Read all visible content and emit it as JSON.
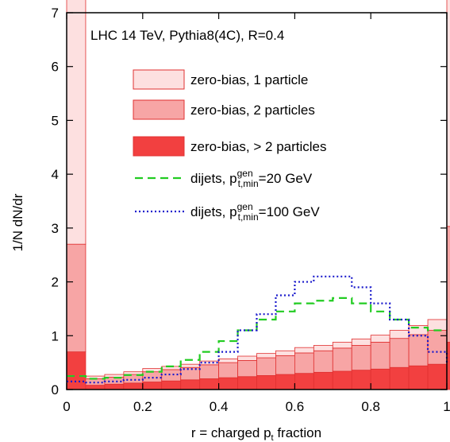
{
  "chart_data": {
    "type": "bar",
    "annotation": "LHC 14 TeV, Pythia8(4C), R=0.4",
    "xlabel_main": "r = charged p",
    "xlabel_sub": "t",
    "xlabel_tail": " fraction",
    "ylabel": "1/N dN/dr",
    "xlim": [
      0,
      1
    ],
    "ylim": [
      0,
      7
    ],
    "xticks": [
      "0",
      "0.2",
      "0.4",
      "0.6",
      "0.8",
      "1"
    ],
    "xtick_values": [
      0,
      0.2,
      0.4,
      0.6,
      0.8,
      1.0
    ],
    "yticks": [
      "0",
      "1",
      "2",
      "3",
      "4",
      "5",
      "6",
      "7"
    ],
    "ytick_values": [
      0,
      1,
      2,
      3,
      4,
      5,
      6,
      7
    ],
    "bin_edges": [
      0,
      0.05,
      0.1,
      0.15,
      0.2,
      0.25,
      0.3,
      0.35,
      0.4,
      0.45,
      0.5,
      0.55,
      0.6,
      0.65,
      0.7,
      0.75,
      0.8,
      0.85,
      0.9,
      0.95,
      1.0
    ],
    "series": [
      {
        "name": "zero-bias, 1 particle",
        "kind": "stacked-bar",
        "fill": "#fde0e0",
        "edge": "#e03030",
        "values": [
          6.15,
          0.05,
          0.05,
          0.05,
          0.06,
          0.06,
          0.06,
          0.07,
          0.07,
          0.08,
          0.08,
          0.09,
          0.1,
          0.1,
          0.11,
          0.12,
          0.13,
          0.15,
          0.17,
          0.2,
          6.18
        ]
      },
      {
        "name": "zero-bias, 2 particles",
        "kind": "stacked-bar",
        "fill": "#f7a5a5",
        "edge": "#e03030",
        "values": [
          2.0,
          0.12,
          0.13,
          0.16,
          0.19,
          0.21,
          0.23,
          0.26,
          0.28,
          0.3,
          0.33,
          0.35,
          0.38,
          0.4,
          0.43,
          0.46,
          0.5,
          0.54,
          0.58,
          0.63,
          2.15
        ]
      },
      {
        "name": "zero-bias, > 2 particles",
        "kind": "stacked-bar",
        "fill": "#f24040",
        "edge": "#e03030",
        "values": [
          0.7,
          0.08,
          0.1,
          0.12,
          0.14,
          0.16,
          0.18,
          0.2,
          0.22,
          0.24,
          0.26,
          0.28,
          0.3,
          0.32,
          0.34,
          0.36,
          0.38,
          0.41,
          0.44,
          0.47,
          0.88
        ]
      },
      {
        "name": "dijets, p",
        "name_sup": "gen",
        "name_sub": "t,min",
        "name_tail": "=20 GeV",
        "kind": "step",
        "color": "#22cc22",
        "dash": "10,6",
        "values": [
          0.25,
          0.2,
          0.22,
          0.27,
          0.33,
          0.43,
          0.55,
          0.7,
          0.9,
          1.1,
          1.3,
          1.45,
          1.6,
          1.65,
          1.7,
          1.6,
          1.45,
          1.3,
          1.15,
          1.1,
          1.1
        ]
      },
      {
        "name": "dijets, p",
        "name_sup": "gen",
        "name_sub": "t,min",
        "name_tail": "=100 GeV",
        "kind": "step",
        "color": "#1a1acc",
        "dash": "2,3",
        "values": [
          0.15,
          0.13,
          0.15,
          0.18,
          0.22,
          0.28,
          0.38,
          0.5,
          0.7,
          1.1,
          1.4,
          1.75,
          2.0,
          2.1,
          2.1,
          1.9,
          1.6,
          1.3,
          1.0,
          0.7,
          0.5
        ]
      }
    ]
  }
}
